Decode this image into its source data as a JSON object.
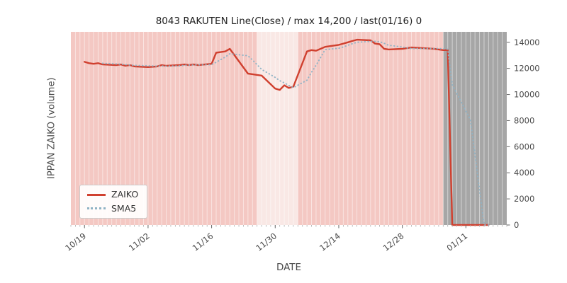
{
  "chart_data": {
    "type": "line",
    "title": "8043 RAKUTEN Line(Close) / max 14,200 / last(01/16) 0",
    "xlabel": "DATE",
    "ylabel": "IPPAN ZAIKO (volume)",
    "legend_position": "lower-left",
    "x": [
      "10/19",
      "10/20",
      "10/21",
      "10/22",
      "10/23",
      "10/26",
      "10/27",
      "10/28",
      "10/29",
      "10/30",
      "11/02",
      "11/04",
      "11/05",
      "11/06",
      "11/09",
      "11/10",
      "11/11",
      "11/12",
      "11/13",
      "11/16",
      "11/17",
      "11/18",
      "11/19",
      "11/20",
      "11/24",
      "11/25",
      "11/26",
      "11/27",
      "11/30",
      "12/01",
      "12/02",
      "12/03",
      "12/04",
      "12/07",
      "12/08",
      "12/09",
      "12/10",
      "12/11",
      "12/14",
      "12/15",
      "12/16",
      "12/17",
      "12/18",
      "12/21",
      "12/22",
      "12/23",
      "12/24",
      "12/25",
      "12/28",
      "12/29",
      "12/30",
      "01/04",
      "01/05",
      "01/06",
      "01/07",
      "01/08",
      "01/12",
      "01/13",
      "01/14",
      "01/15",
      "01/16"
    ],
    "series": [
      {
        "name": "ZAIKO",
        "color": "#d0402f",
        "style": "solid",
        "values": [
          12500,
          12400,
          12350,
          12400,
          12300,
          12250,
          12300,
          12200,
          12250,
          12150,
          12100,
          12150,
          12250,
          12200,
          12250,
          12300,
          12250,
          12300,
          12250,
          12350,
          13200,
          13250,
          13300,
          13500,
          11600,
          11550,
          11500,
          11450,
          10450,
          10350,
          10700,
          10500,
          10600,
          13300,
          13400,
          13350,
          13500,
          13650,
          13800,
          13900,
          14000,
          14100,
          14200,
          14150,
          13900,
          13850,
          13500,
          13450,
          13500,
          13550,
          13600,
          13500,
          13450,
          13400,
          13400,
          0,
          0,
          0,
          0,
          0,
          0
        ]
      },
      {
        "name": "SMA5",
        "color": "#8fb3c5",
        "style": "dotted",
        "derived": "trailing_mean",
        "window": 5,
        "source": "ZAIKO"
      }
    ],
    "x_ticks": [
      "10/19",
      "11/02",
      "11/16",
      "11/30",
      "12/14",
      "12/28",
      "01/11"
    ],
    "y_ticks": [
      0,
      2000,
      4000,
      6000,
      8000,
      10000,
      12000,
      14000
    ],
    "xlim": [
      "10/16",
      "01/20"
    ],
    "ylim": [
      0,
      14800
    ],
    "plot_bg": "#f4c8c3",
    "stripe_color": "rgba(255,255,255,0.5)",
    "bands": [
      {
        "name": "light-band",
        "from": "11/26",
        "to": "12/05",
        "color": "#f9e8e5"
      },
      {
        "name": "gray-band",
        "from": "01/06",
        "to": "01/20",
        "color": "#a6a6a6"
      }
    ],
    "max_value": 14200,
    "last_value": 0,
    "last_date": "01/16"
  }
}
